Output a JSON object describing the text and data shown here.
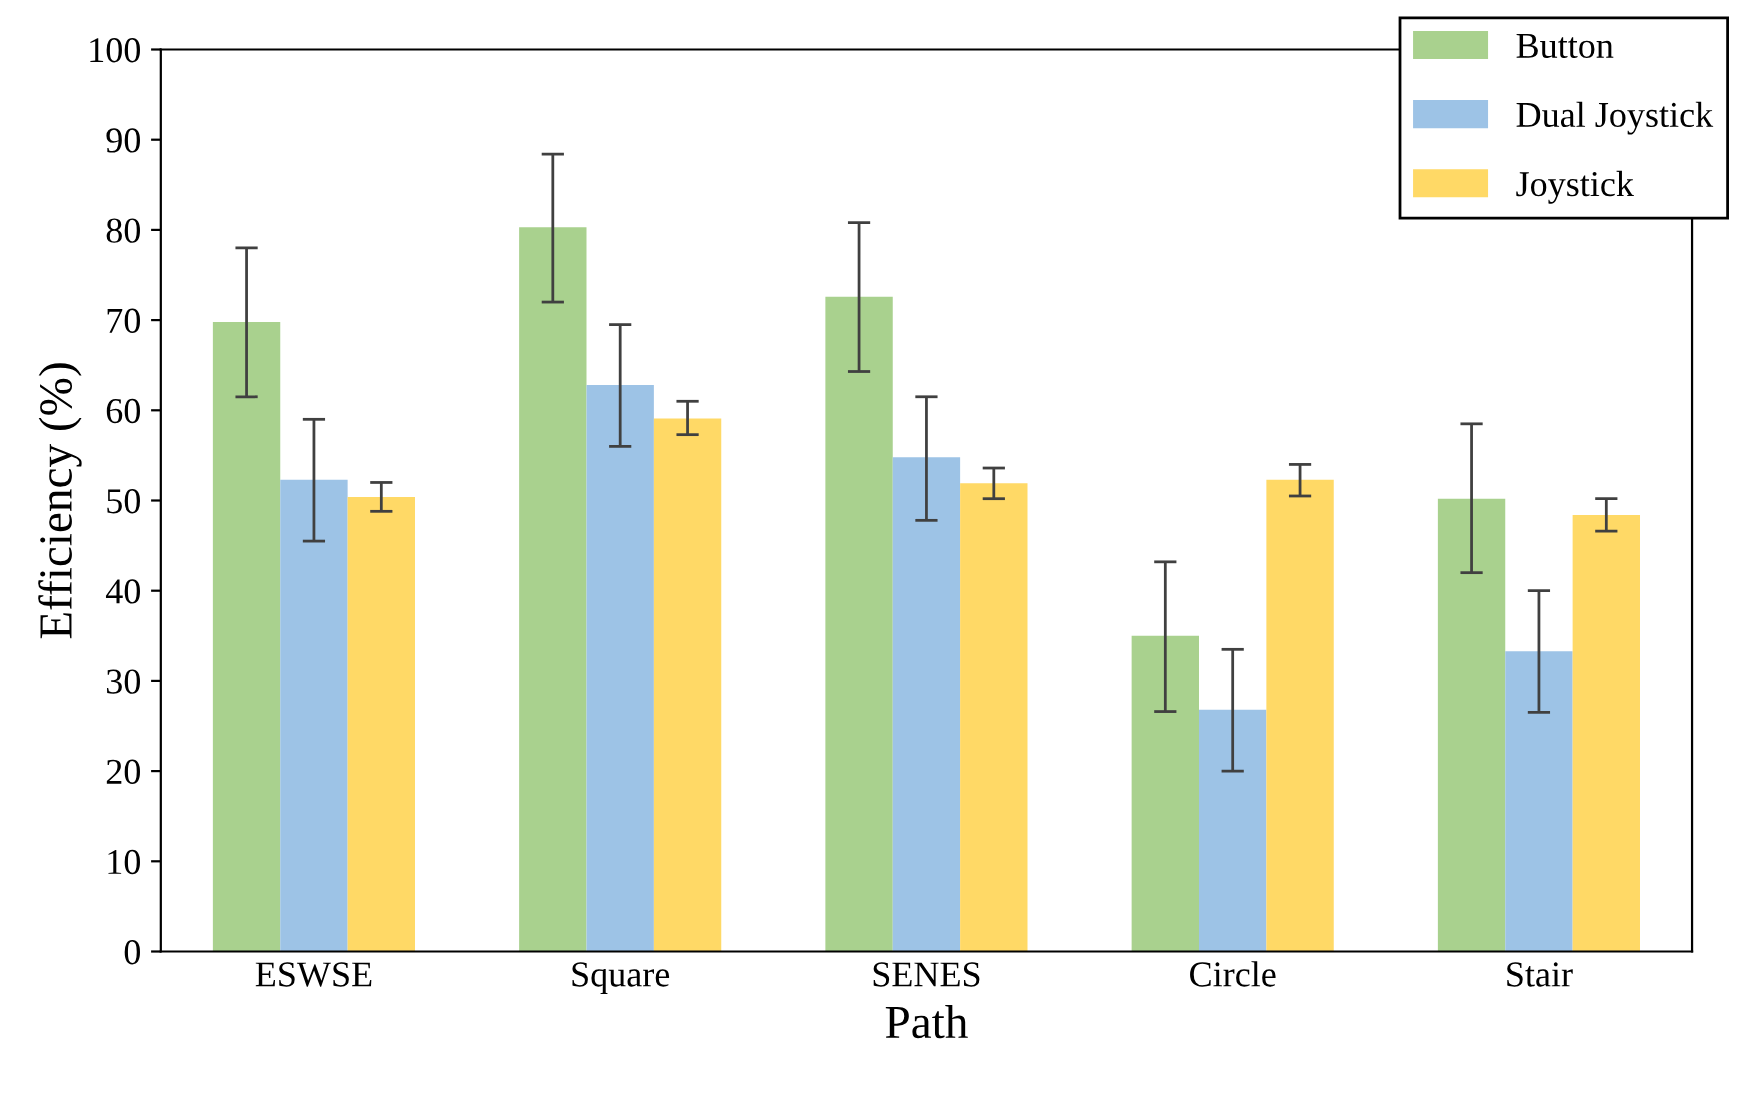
{
  "chart_data": {
    "type": "bar",
    "xlabel": "Path",
    "ylabel": "Efficiency (%)",
    "categories": [
      "ESWSE",
      "Square",
      "SENES",
      "Circle",
      "Stair"
    ],
    "series": [
      {
        "name": "Button",
        "color": "#a9d18e",
        "values": [
          69.8,
          80.3,
          72.6,
          35,
          50.2
        ],
        "errors": [
          [
            61.5,
            78
          ],
          [
            72,
            88.4
          ],
          [
            64.3,
            80.8
          ],
          [
            26.6,
            43.2
          ],
          [
            42,
            58.5
          ]
        ]
      },
      {
        "name": "Dual Joystick",
        "color": "#9dc3e6",
        "values": [
          52.3,
          62.8,
          54.8,
          26.8,
          33.3
        ],
        "errors": [
          [
            45.5,
            59
          ],
          [
            56,
            69.5
          ],
          [
            47.8,
            61.5
          ],
          [
            20,
            33.5
          ],
          [
            26.5,
            40
          ]
        ]
      },
      {
        "name": "Joystick",
        "color": "#ffd966",
        "values": [
          50.4,
          59.1,
          51.9,
          52.3,
          48.4
        ],
        "errors": [
          [
            48.8,
            52
          ],
          [
            57.3,
            61
          ],
          [
            50.2,
            53.6
          ],
          [
            50.5,
            54
          ],
          [
            46.6,
            50.2
          ]
        ]
      }
    ],
    "ylim": [
      0,
      100
    ],
    "yticks": [
      0,
      10,
      20,
      30,
      40,
      50,
      60,
      70,
      80,
      90,
      100
    ],
    "grid": false,
    "legend": "top right"
  }
}
